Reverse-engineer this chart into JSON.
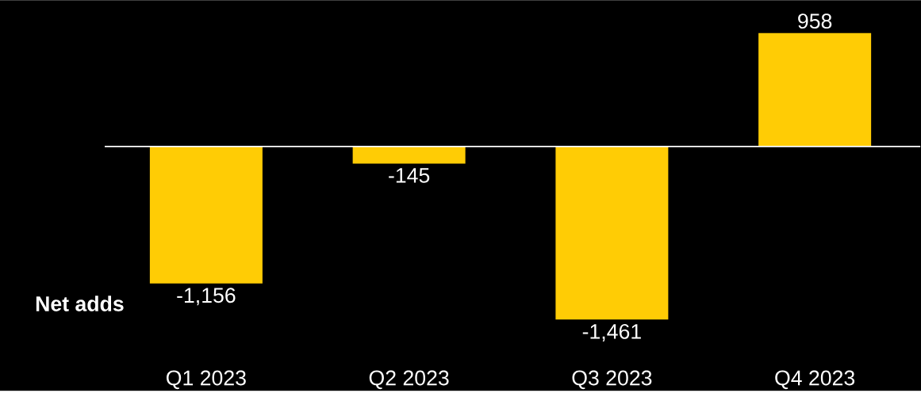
{
  "chart_data": {
    "type": "bar",
    "ylabel": "Net adds",
    "categories": [
      "Q1 2023",
      "Q2 2023",
      "Q3 2023",
      "Q4 2023"
    ],
    "values": [
      -1156,
      -145,
      -1461,
      958
    ],
    "color": "#ffcc05",
    "value_labels": [
      "-1,156",
      "-145",
      "-1,461",
      "958"
    ]
  }
}
